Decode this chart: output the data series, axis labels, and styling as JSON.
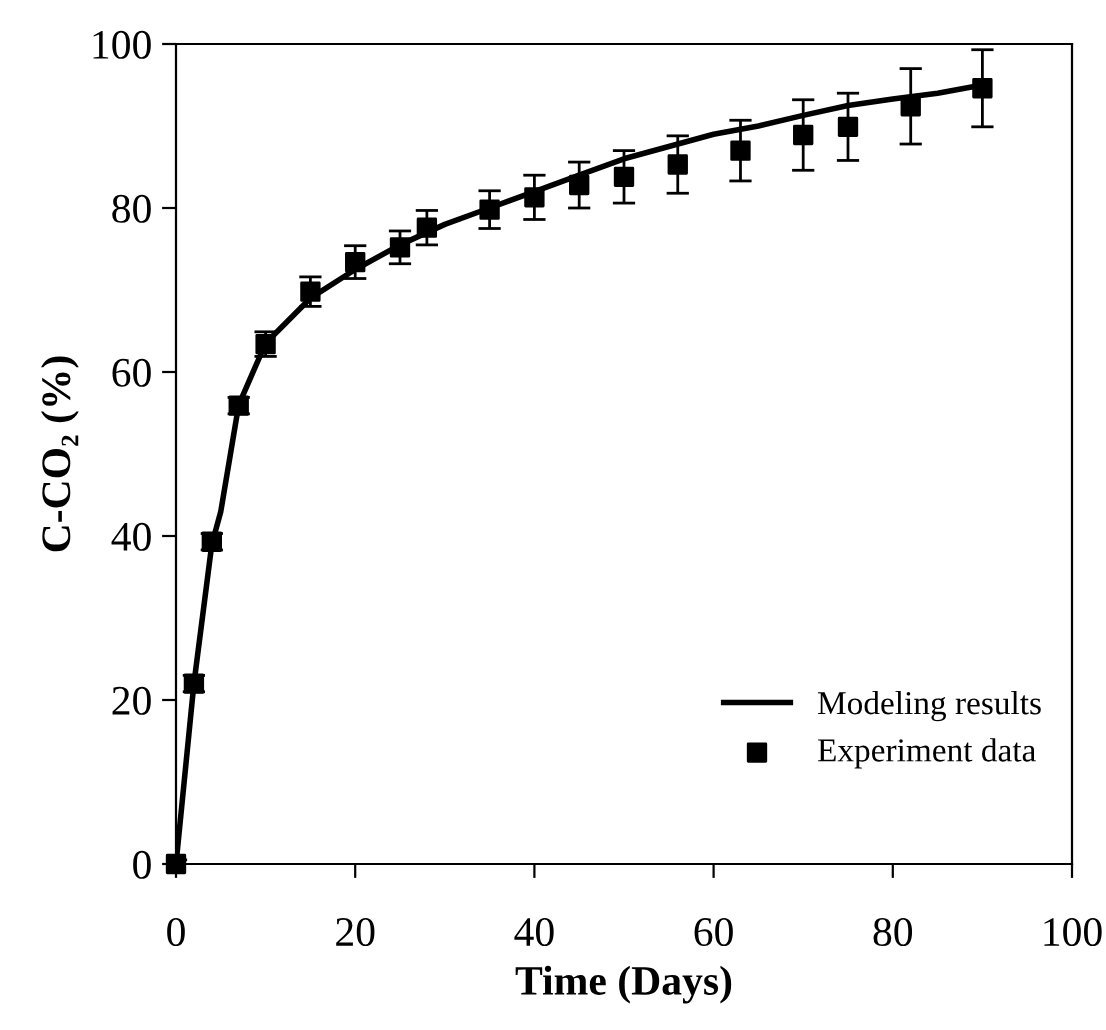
{
  "chart_data": {
    "type": "line",
    "xlabel": "Time (Days)",
    "ylabel": "C-CO₂ (%)",
    "xlim": [
      0,
      100
    ],
    "ylim": [
      0,
      100
    ],
    "xticks": [
      0,
      20,
      40,
      60,
      80,
      100
    ],
    "yticks": [
      0,
      20,
      40,
      60,
      80,
      100
    ],
    "grid": false,
    "legend": "bottom right",
    "series": [
      {
        "name": "Modeling results",
        "color": "#000000",
        "marker": "none",
        "line_style": "solid",
        "x": [
          0,
          2,
          4,
          5,
          7,
          10,
          15,
          20,
          25,
          30,
          35,
          40,
          45,
          50,
          55,
          60,
          65,
          70,
          75,
          80,
          85,
          90
        ],
        "values": [
          0,
          22,
          39,
          43,
          56,
          63.5,
          69,
          72.5,
          75.5,
          78,
          80,
          82,
          84,
          86,
          87.5,
          89,
          90,
          91.3,
          92.5,
          93.3,
          94,
          95
        ]
      },
      {
        "name": "Experiment data",
        "type": "scatter",
        "color": "#000000",
        "marker": "square",
        "x": [
          0,
          2,
          4,
          7,
          10,
          15,
          20,
          25,
          28,
          35,
          40,
          45,
          50,
          56,
          63,
          70,
          75,
          82,
          90
        ],
        "values": [
          0,
          22,
          39.3,
          55.9,
          63.4,
          69.8,
          73.4,
          75.2,
          77.6,
          79.8,
          81.3,
          82.8,
          83.8,
          85.3,
          87,
          88.9,
          89.9,
          92.4,
          94.6
        ],
        "errors": [
          0.5,
          1,
          1,
          1,
          1.5,
          1.8,
          2,
          2,
          2.1,
          2.3,
          2.7,
          2.8,
          3.2,
          3.5,
          3.7,
          4.3,
          4.1,
          4.6,
          4.7
        ]
      }
    ]
  }
}
